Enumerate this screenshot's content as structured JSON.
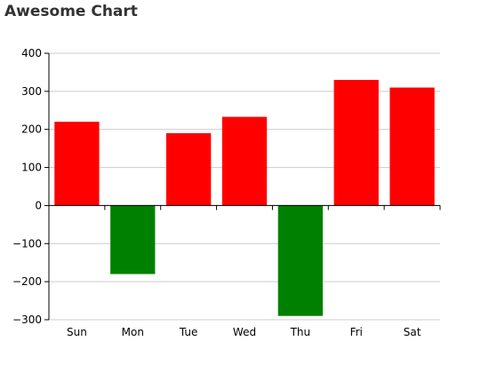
{
  "chart_data": {
    "type": "bar",
    "title": "Awesome Chart",
    "categories": [
      "Sun",
      "Mon",
      "Tue",
      "Wed",
      "Thu",
      "Fri",
      "Sat"
    ],
    "values": [
      220,
      -180,
      190,
      233,
      -290,
      330,
      310
    ],
    "ylim": [
      -300,
      400
    ],
    "yticks": [
      -300,
      -200,
      -100,
      0,
      100,
      200,
      300,
      400
    ],
    "xlabel": "",
    "ylabel": "",
    "grid": true,
    "legend": "none",
    "colors": {
      "positive": "#ff0000",
      "negative": "#008000"
    }
  }
}
